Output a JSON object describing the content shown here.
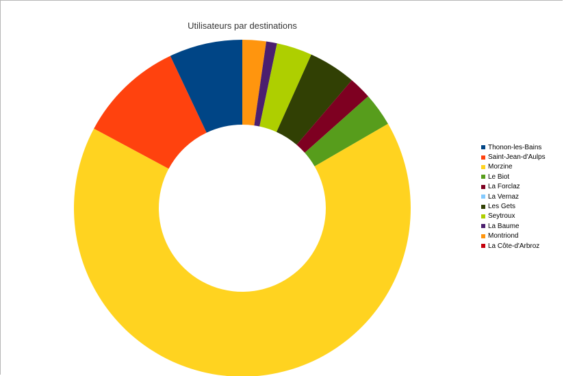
{
  "chart_data": {
    "type": "pie",
    "variant": "donut",
    "title": "Utilisateurs par destinations",
    "legend_position": "right",
    "categories": [
      "Thonon-les-Bains",
      "Saint-Jean-d'Aulps",
      "Morzine",
      "Le Biot",
      "La Forclaz",
      "La Vernaz",
      "Les Gets",
      "Seytroux",
      "La Baume",
      "Montriond",
      "La Côte-d'Arbroz"
    ],
    "values": [
      6.8,
      9.8,
      64.0,
      3.1,
      2.1,
      0.0,
      4.4,
      3.3,
      1.0,
      2.2,
      0.0
    ],
    "colors": [
      "#004586",
      "#ff420e",
      "#ffd320",
      "#579d1c",
      "#7e0021",
      "#83caff",
      "#314004",
      "#aecf00",
      "#4b1f6f",
      "#ff950e",
      "#c5000b"
    ]
  }
}
